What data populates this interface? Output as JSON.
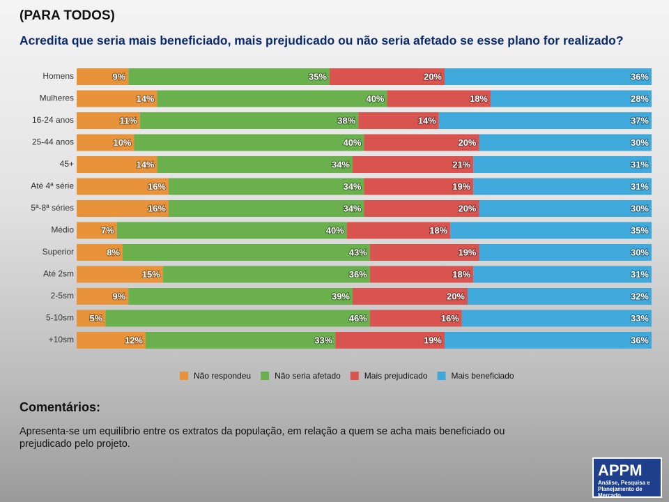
{
  "header": {
    "kicker": "(PARA TODOS)"
  },
  "chart_data": {
    "type": "stacked-bar-horizontal",
    "title": "Acredita que seria mais beneficiado, mais prejudicado ou não seria afetado se esse plano for realizado?",
    "categories": [
      "Homens",
      "Mulheres",
      "16-24 anos",
      "25-44 anos",
      "45+",
      "Até 4ª série",
      "5ª-8ª séries",
      "Médio",
      "Superior",
      "Até 2sm",
      "2-5sm",
      "5-10sm",
      "+10sm"
    ],
    "series": [
      {
        "name": "Não respondeu",
        "color": "#e8923a",
        "values": [
          9,
          14,
          11,
          10,
          14,
          16,
          16,
          7,
          8,
          15,
          9,
          5,
          12
        ],
        "value_labels": [
          "9%",
          "14%",
          "11%",
          "10%",
          "14%",
          "16%",
          "16%",
          "7%",
          "8%",
          "15%",
          "9%",
          "5%",
          "12%"
        ]
      },
      {
        "name": "Não seria afetado",
        "color": "#6ab04c",
        "values": [
          35,
          40,
          38,
          40,
          34,
          34,
          34,
          40,
          43,
          36,
          39,
          46,
          33
        ],
        "value_labels": [
          "35%",
          "40%",
          "38%",
          "40%",
          "34%",
          "34%",
          "34%",
          "40%",
          "43%",
          "36%",
          "39%",
          "46%",
          "33%"
        ]
      },
      {
        "name": "Mais prejudicado",
        "color": "#d9534f",
        "values": [
          20,
          18,
          14,
          20,
          21,
          19,
          20,
          18,
          19,
          18,
          20,
          16,
          19
        ],
        "value_labels": [
          "20%",
          "18%",
          "14%",
          "20%",
          "21%",
          "19%",
          "20%",
          "18%",
          "19%",
          "18%",
          "20%",
          "16%",
          "19%"
        ]
      },
      {
        "name": "Mais beneficiado",
        "color": "#3fa9dc",
        "values": [
          36,
          28,
          37,
          30,
          31,
          31,
          30,
          35,
          30,
          31,
          32,
          33,
          36
        ],
        "value_labels": [
          "36%",
          "28%",
          "37%",
          "30%",
          "31%",
          "31%",
          "30%",
          "35%",
          "30%",
          "31%",
          "32%",
          "33%",
          "36%"
        ]
      }
    ]
  },
  "comments": {
    "heading": "Comentários:",
    "text": "Apresenta-se um equilíbrio entre os extratos da população, em relação a quem se acha mais beneficiado ou prejudicado pelo projeto."
  },
  "logo": {
    "name": "APPM",
    "tagline": "Análise, Pesquisa e Planejamento de Mercado"
  }
}
